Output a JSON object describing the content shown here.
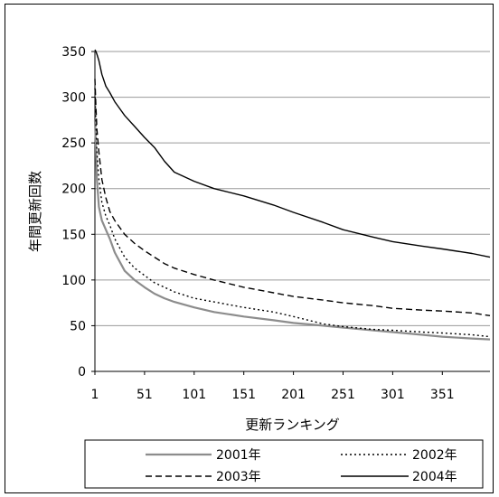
{
  "chart_data": {
    "type": "line",
    "title": "",
    "xlabel": "更新ランキング",
    "ylabel": "年間更新回数",
    "xlim": [
      1,
      399
    ],
    "ylim": [
      0,
      350
    ],
    "x_ticks": [
      "1",
      "51",
      "101",
      "151",
      "201",
      "251",
      "301",
      "351"
    ],
    "x_tick_values": [
      1,
      51,
      101,
      151,
      201,
      251,
      301,
      351
    ],
    "y_ticks": [
      "0",
      "50",
      "100",
      "150",
      "200",
      "250",
      "300",
      "350"
    ],
    "y_tick_values": [
      0,
      50,
      100,
      150,
      200,
      250,
      300,
      350
    ],
    "grid": "horizontal",
    "legend_position": "bottom",
    "colors": {
      "s2001": "#8c8c8c",
      "s2002": "#000000",
      "s2003": "#000000",
      "s2004": "#000000"
    },
    "series": [
      {
        "name": "2001年",
        "style": "solid-gray",
        "x": [
          1,
          2,
          3,
          5,
          8,
          12,
          16,
          21,
          31,
          41,
          51,
          61,
          71,
          81,
          101,
          121,
          151,
          181,
          201,
          231,
          251,
          281,
          301,
          331,
          351,
          381,
          399
        ],
        "y": [
          275,
          245,
          210,
          180,
          165,
          155,
          145,
          130,
          110,
          100,
          92,
          85,
          80,
          76,
          70,
          65,
          60,
          56,
          53,
          50,
          48,
          45,
          43,
          40,
          38,
          36,
          35
        ]
      },
      {
        "name": "2002年",
        "style": "dotted",
        "x": [
          1,
          2,
          3,
          5,
          8,
          12,
          16,
          21,
          31,
          41,
          51,
          61,
          71,
          81,
          101,
          121,
          151,
          181,
          201,
          231,
          251,
          281,
          301,
          331,
          351,
          381,
          399
        ],
        "y": [
          310,
          270,
          240,
          210,
          185,
          170,
          160,
          145,
          125,
          113,
          105,
          97,
          92,
          87,
          80,
          76,
          70,
          65,
          60,
          52,
          49,
          46,
          45,
          43,
          42,
          40,
          38
        ]
      },
      {
        "name": "2003年",
        "style": "dashed",
        "x": [
          1,
          2,
          3,
          5,
          8,
          12,
          16,
          21,
          31,
          41,
          51,
          61,
          71,
          81,
          101,
          121,
          151,
          181,
          201,
          231,
          251,
          281,
          301,
          331,
          351,
          381,
          399
        ],
        "y": [
          320,
          290,
          265,
          240,
          210,
          190,
          175,
          165,
          150,
          140,
          132,
          125,
          118,
          113,
          106,
          100,
          92,
          86,
          82,
          78,
          75,
          72,
          69,
          67,
          66,
          64,
          61
        ]
      },
      {
        "name": "2004年",
        "style": "solid-black",
        "x": [
          1,
          2,
          3,
          5,
          8,
          12,
          16,
          21,
          31,
          41,
          51,
          61,
          71,
          81,
          101,
          121,
          151,
          181,
          201,
          231,
          251,
          281,
          301,
          331,
          351,
          381,
          399
        ],
        "y": [
          352,
          350,
          347,
          340,
          325,
          312,
          305,
          295,
          280,
          268,
          256,
          245,
          230,
          218,
          208,
          200,
          192,
          182,
          174,
          163,
          155,
          147,
          142,
          137,
          134,
          129,
          125
        ]
      }
    ]
  }
}
